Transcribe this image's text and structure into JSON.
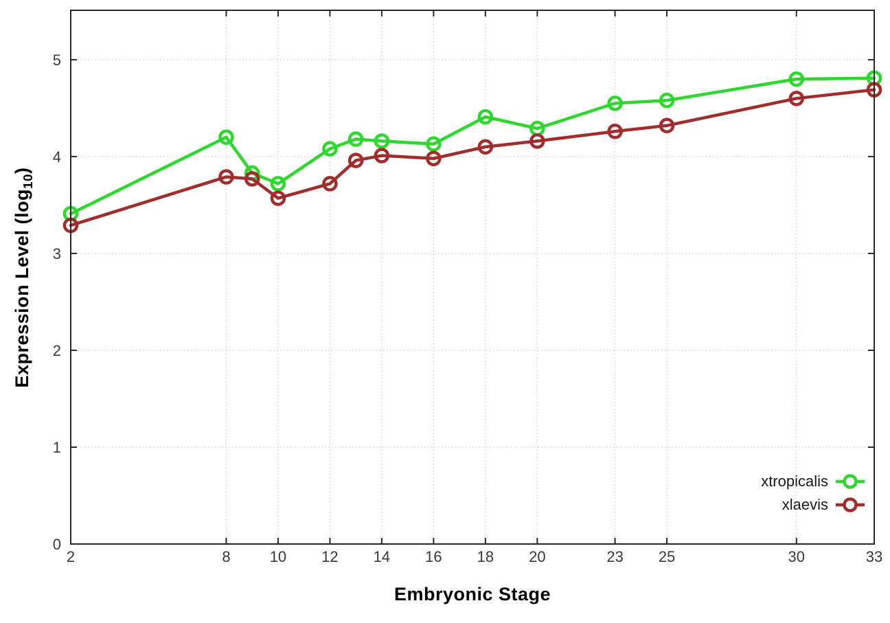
{
  "figure": {
    "xlabel": "Embryonic Stage",
    "ylabel_prefix": "Expression Level (log",
    "ylabel_sub": "10",
    "ylabel_suffix": ")"
  },
  "chart_data": {
    "type": "line",
    "title": "",
    "xlabel": "Embryonic Stage",
    "ylabel": "Expression Level (log10)",
    "x": [
      2,
      8,
      9,
      10,
      12,
      13,
      14,
      16,
      18,
      20,
      23,
      25,
      30,
      33
    ],
    "x_tick_labels": [
      "2",
      "8",
      "10",
      "12",
      "14",
      "16",
      "18",
      "20",
      "23",
      "25",
      "30",
      "33"
    ],
    "x_tick_values": [
      2,
      8,
      10,
      12,
      14,
      16,
      18,
      20,
      23,
      25,
      30,
      33
    ],
    "y_tick_labels": [
      "0",
      "1",
      "2",
      "3",
      "4",
      "5"
    ],
    "y_tick_values": [
      0,
      1,
      2,
      3,
      4,
      5
    ],
    "xlim": [
      2,
      33
    ],
    "ylim": [
      0,
      5.51
    ],
    "grid": true,
    "grid_color": "#c0c0c0",
    "border_color": "#262626",
    "legend_position": "inside-bottom-right",
    "series": [
      {
        "name": "xtropicalis",
        "color": "#2bd82b",
        "values": [
          3.41,
          4.2,
          3.83,
          3.72,
          4.08,
          4.18,
          4.16,
          4.13,
          4.41,
          4.29,
          4.55,
          4.58,
          4.8,
          4.81
        ]
      },
      {
        "name": "xlaevis",
        "color": "#a22c2c",
        "values": [
          3.29,
          3.79,
          3.77,
          3.57,
          3.72,
          3.96,
          4.01,
          3.98,
          4.1,
          4.16,
          4.26,
          4.32,
          4.6,
          4.69
        ]
      }
    ]
  }
}
